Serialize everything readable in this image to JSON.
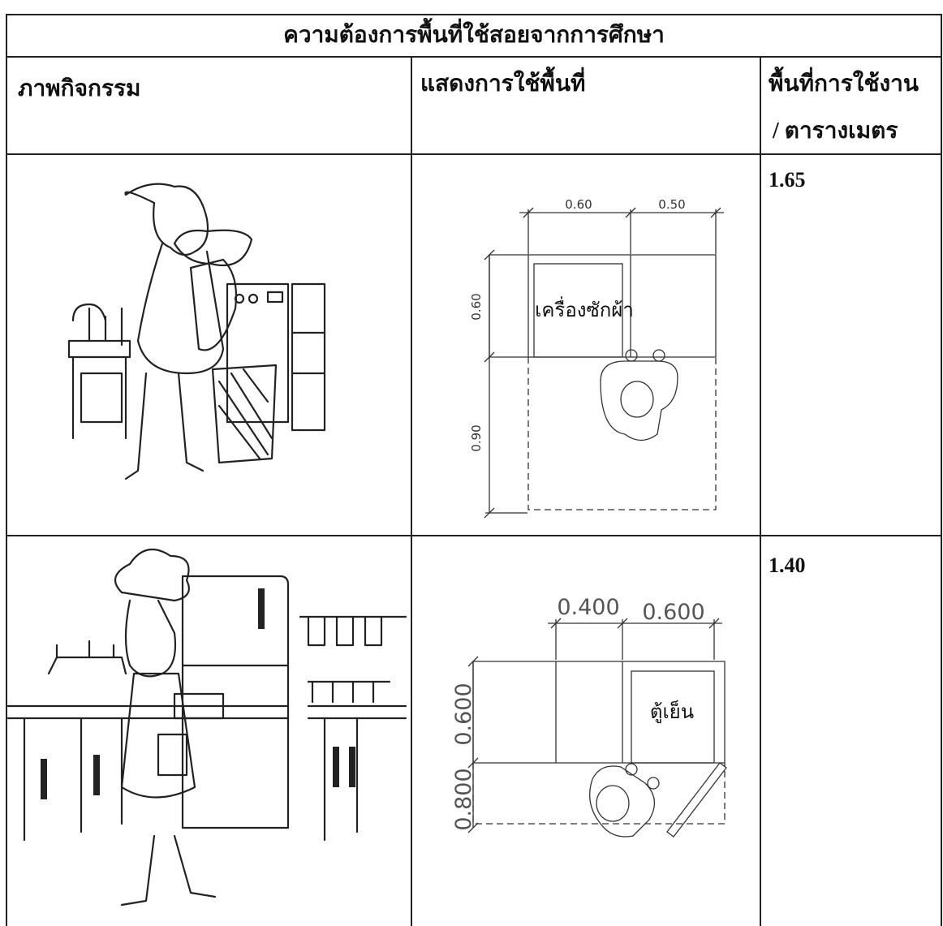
{
  "table": {
    "title": "ความต้องการพื้นที่ใช้สอยจากการศึกษา",
    "headers": {
      "activity": "ภาพกิจกรรม",
      "layout": "แสดงการใช้พื้นที่",
      "area": [
        "พื้นที่การใช้งาน",
        "/ ตารางเมตร"
      ]
    },
    "rows": [
      {
        "area": "1.65",
        "plan": {
          "widths": [
            "0.60",
            "0.50"
          ],
          "depths": [
            "0.60",
            "0.90"
          ],
          "label": "เครื่องซักผ้า"
        }
      },
      {
        "area": "1.40",
        "plan": {
          "widths": [
            "0.400",
            "0.600"
          ],
          "depths": [
            "0.600",
            "0.800"
          ],
          "label": "ตู้เย็น"
        }
      }
    ]
  }
}
